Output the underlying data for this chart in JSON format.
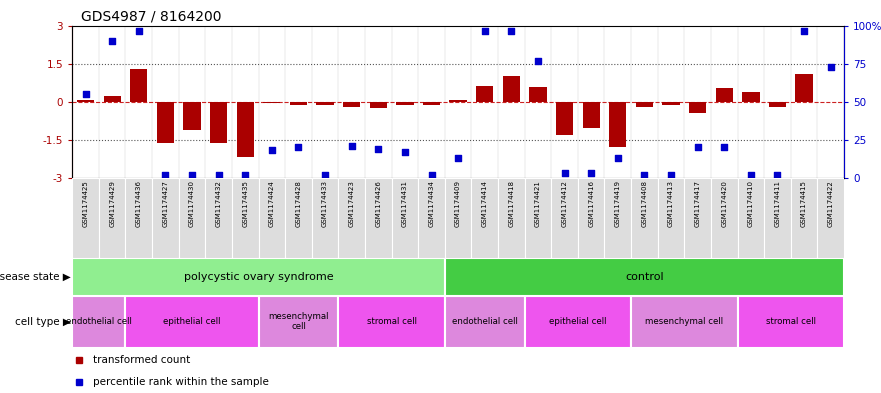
{
  "title": "GDS4987 / 8164200",
  "samples": [
    "GSM1174425",
    "GSM1174429",
    "GSM1174436",
    "GSM1174427",
    "GSM1174430",
    "GSM1174432",
    "GSM1174435",
    "GSM1174424",
    "GSM1174428",
    "GSM1174433",
    "GSM1174423",
    "GSM1174426",
    "GSM1174431",
    "GSM1174434",
    "GSM1174409",
    "GSM1174414",
    "GSM1174418",
    "GSM1174421",
    "GSM1174412",
    "GSM1174416",
    "GSM1174419",
    "GSM1174408",
    "GSM1174413",
    "GSM1174417",
    "GSM1174420",
    "GSM1174410",
    "GSM1174411",
    "GSM1174415",
    "GSM1174422"
  ],
  "bar_values": [
    0.08,
    0.22,
    1.3,
    -1.62,
    -1.1,
    -1.62,
    -2.2,
    -0.05,
    -0.12,
    -0.12,
    -0.18,
    -0.25,
    -0.12,
    -0.12,
    0.08,
    0.65,
    1.05,
    0.6,
    -1.3,
    -1.05,
    -1.8,
    -0.18,
    -0.12,
    -0.45,
    0.55,
    0.38,
    -0.18,
    1.1,
    0.0
  ],
  "percentile_values": [
    55,
    90,
    97,
    2,
    2,
    2,
    2,
    18,
    20,
    2,
    21,
    19,
    17,
    2,
    13,
    97,
    97,
    77,
    3,
    3,
    13,
    2,
    2,
    20,
    20,
    2,
    2,
    97,
    73
  ],
  "bar_color": "#AA0000",
  "dot_color": "#0000CC",
  "zero_line_color": "#CC2222",
  "dotted_line_color": "#555555",
  "disease_groups": [
    {
      "label": "polycystic ovary syndrome",
      "start": 0,
      "end": 14,
      "color": "#90EE90"
    },
    {
      "label": "control",
      "start": 14,
      "end": 29,
      "color": "#44CC44"
    }
  ],
  "cell_groups": [
    {
      "label": "endothelial cell",
      "start": 0,
      "end": 2,
      "color": "#DD88DD"
    },
    {
      "label": "epithelial cell",
      "start": 2,
      "end": 7,
      "color": "#EE55EE"
    },
    {
      "label": "mesenchymal\ncell",
      "start": 7,
      "end": 10,
      "color": "#DD88DD"
    },
    {
      "label": "stromal cell",
      "start": 10,
      "end": 14,
      "color": "#EE55EE"
    },
    {
      "label": "endothelial cell",
      "start": 14,
      "end": 17,
      "color": "#DD88DD"
    },
    {
      "label": "epithelial cell",
      "start": 17,
      "end": 21,
      "color": "#EE55EE"
    },
    {
      "label": "mesenchymal cell",
      "start": 21,
      "end": 25,
      "color": "#DD88DD"
    },
    {
      "label": "stromal cell",
      "start": 25,
      "end": 29,
      "color": "#EE55EE"
    }
  ],
  "disease_label": "disease state",
  "cell_label": "cell type",
  "legend_bar": "transformed count",
  "legend_dot": "percentile rank within the sample",
  "ylim": [
    -3,
    3
  ],
  "yticks": [
    -3,
    -1.5,
    0,
    1.5,
    3
  ],
  "ytick_labels_left": [
    "-3",
    "-1.5",
    "0",
    "1.5",
    "3"
  ],
  "ytick_labels_right": [
    "0",
    "25",
    "50",
    "75",
    "100%"
  ]
}
